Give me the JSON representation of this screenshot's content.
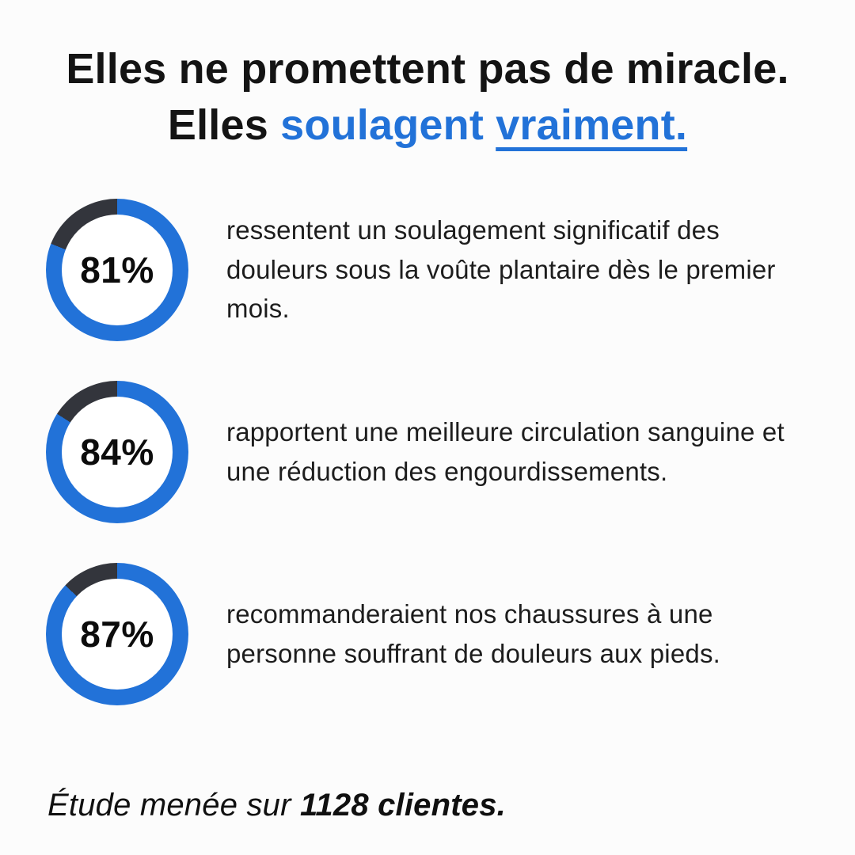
{
  "title": {
    "line1": "Elles ne promettent pas de miracle.",
    "line2_prefix": "Elles ",
    "line2_highlight": "soulagent ",
    "line2_underlined": "vraiment."
  },
  "colors": {
    "accent_blue": "#2272d8",
    "ring_track_dark": "#33353c",
    "ink": "#141414",
    "background": "#fcfcfc"
  },
  "stats": [
    {
      "percent": 81,
      "label": "81%",
      "description": "ressentent un soulagement significatif des douleurs sous la voûte plantaire dès le premier mois."
    },
    {
      "percent": 84,
      "label": "84%",
      "description": "rapportent une meilleure circulation sanguine et une réduction des engourdissements."
    },
    {
      "percent": 87,
      "label": "87%",
      "description": "recommanderaient nos chaussures à une personne souffrant de douleurs aux pieds."
    }
  ],
  "footer": {
    "prefix": "Étude menée sur ",
    "bold": "1128 clientes."
  },
  "chart_data": {
    "type": "pie",
    "subtype": "progress-donut-rings",
    "title": "Elles ne promettent pas de miracle. Elles soulagent vraiment.",
    "series": [
      {
        "name": "ressentent un soulagement significatif des douleurs sous la voûte plantaire dès le premier mois.",
        "value": 81,
        "unit": "%"
      },
      {
        "name": "rapportent une meilleure circulation sanguine et une réduction des engourdissements.",
        "value": 84,
        "unit": "%"
      },
      {
        "name": "recommanderaient nos chaussures à une personne souffrant de douleurs aux pieds.",
        "value": 87,
        "unit": "%"
      }
    ],
    "value_range": [
      0,
      100
    ],
    "filled_color": "#2272d8",
    "remainder_color": "#33353c",
    "annotation": "Étude menée sur 1128 clientes."
  }
}
